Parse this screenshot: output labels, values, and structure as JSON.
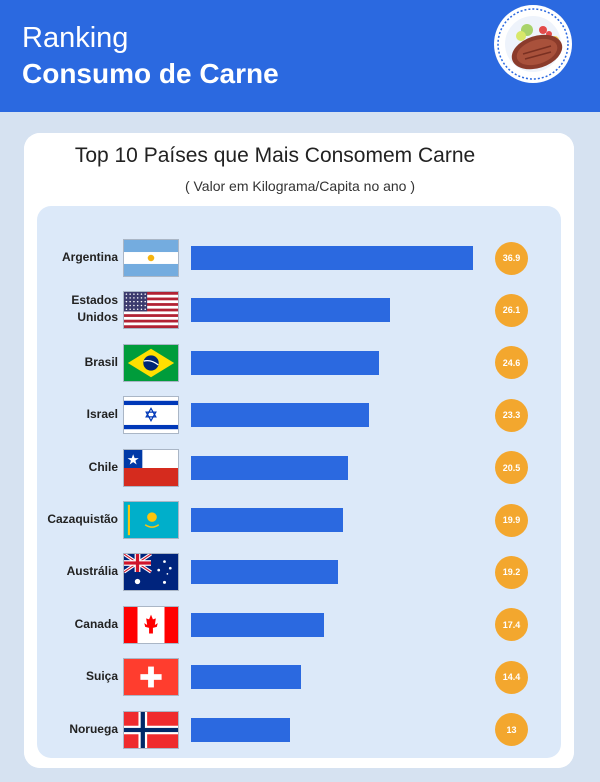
{
  "header": {
    "line1": "Ranking",
    "line2": "Consumo de Carne"
  },
  "colors": {
    "header_bg": "#2b69e0",
    "bar": "#2b69e0",
    "badge": "#f3a72e",
    "panel": "#dce9f9",
    "page_bg": "#d6e2f1"
  },
  "icons": {
    "emblem": "meat-steak-plate-icon"
  },
  "chart_data": {
    "type": "bar",
    "orientation": "horizontal",
    "title": "Top 10 Países que Mais Consomem Carne",
    "subtitle": "( Valor em Kilograma/Capita no ano )",
    "categories": [
      "Argentina",
      "Estados Unidos",
      "Brasil",
      "Israel",
      "Chile",
      "Cazaquistão",
      "Austrália",
      "Canada",
      "Suiça",
      "Noruega"
    ],
    "values": [
      36.9,
      26.1,
      24.6,
      23.3,
      20.5,
      19.9,
      19.2,
      17.4,
      14.4,
      13
    ],
    "value_labels": [
      "36.9",
      "26.1",
      "24.6",
      "23.3",
      "20.5",
      "19.9",
      "19.2",
      "17.4",
      "14.4",
      "13"
    ],
    "flags": [
      "argentina-flag-icon",
      "usa-flag-icon",
      "brazil-flag-icon",
      "israel-flag-icon",
      "chile-flag-icon",
      "kazakhstan-flag-icon",
      "australia-flag-icon",
      "canada-flag-icon",
      "switzerland-flag-icon",
      "norway-flag-icon"
    ],
    "xlim": [
      0,
      36.9
    ],
    "grid": false
  }
}
